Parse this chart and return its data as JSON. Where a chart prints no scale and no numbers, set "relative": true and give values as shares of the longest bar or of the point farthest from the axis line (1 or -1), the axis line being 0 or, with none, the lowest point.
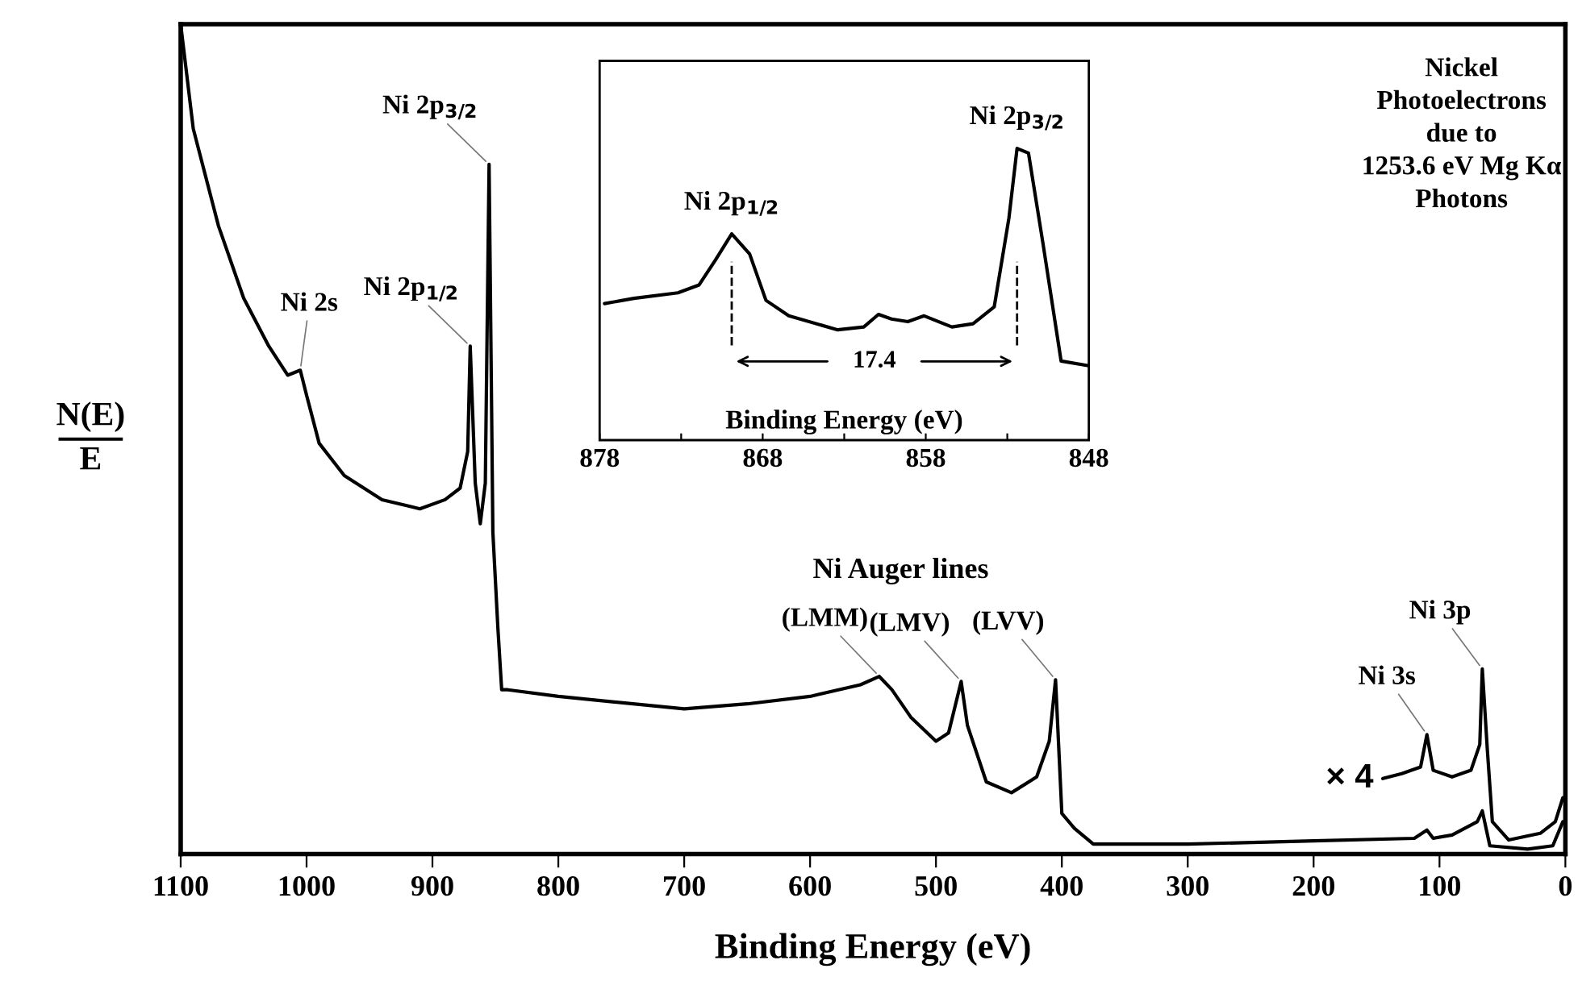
{
  "chart_data": [
    {
      "type": "line",
      "xlabel": "Binding Energy (eV)",
      "ylabel": "N(E)\nE",
      "relative": true,
      "tick_labels": "x",
      "xlim": [
        1100,
        0
      ],
      "xticks": [
        1100,
        1000,
        900,
        800,
        700,
        600,
        500,
        400,
        300,
        200,
        100,
        0
      ],
      "series": [
        {
          "color": "#000000",
          "x": [
            1100,
            1090,
            1070,
            1050,
            1030,
            1015,
            1005,
            1000,
            990,
            970,
            940,
            910,
            890,
            878,
            872,
            870,
            866,
            862,
            858,
            855,
            852,
            848,
            845,
            840,
            800,
            700,
            650,
            600,
            560,
            545,
            535,
            520,
            500,
            490,
            480,
            475,
            460,
            440,
            420,
            410,
            405,
            400,
            390,
            375,
            300,
            200,
            120,
            110,
            105,
            90,
            70,
            66,
            60,
            30,
            10,
            2
          ],
          "values": [
            1.0,
            0.874,
            0.757,
            0.67,
            0.612,
            0.577,
            0.583,
            0.553,
            0.495,
            0.456,
            0.427,
            0.416,
            0.427,
            0.441,
            0.485,
            0.612,
            0.447,
            0.398,
            0.447,
            0.831,
            0.388,
            0.272,
            0.198,
            0.198,
            0.19,
            0.175,
            0.181,
            0.19,
            0.204,
            0.214,
            0.198,
            0.165,
            0.136,
            0.146,
            0.208,
            0.155,
            0.087,
            0.074,
            0.093,
            0.136,
            0.21,
            0.049,
            0.031,
            0.012,
            0.012,
            0.016,
            0.019,
            0.029,
            0.019,
            0.023,
            0.039,
            0.052,
            0.01,
            0.006,
            0.01,
            0.039
          ]
        },
        {
          "name": "× 4",
          "color": "#000000",
          "x": [
            145,
            130,
            115,
            110,
            105,
            90,
            75,
            68,
            66,
            62,
            58,
            45,
            20,
            8,
            2
          ],
          "values": [
            0.091,
            0.097,
            0.105,
            0.144,
            0.101,
            0.093,
            0.101,
            0.132,
            0.223,
            0.126,
            0.039,
            0.017,
            0.025,
            0.039,
            0.068
          ]
        }
      ],
      "annotations": [
        {
          "text": "Ni 2s",
          "x": 1005,
          "y": 0.583
        },
        {
          "text": "Ni 2p$_{1/2}$",
          "x": 870,
          "y": 0.612
        },
        {
          "text": "Ni 2p$_{3/2}$",
          "x": 855,
          "y": 0.831
        },
        {
          "text": "(LMM)",
          "x": 545,
          "y": 0.214
        },
        {
          "text": "(LMV)",
          "x": 480,
          "y": 0.208
        },
        {
          "text": "(LVV)",
          "x": 405,
          "y": 0.21
        },
        {
          "text": "Ni 3s",
          "x": 110,
          "y": 0.144
        },
        {
          "text": "Ni 3p",
          "x": 66,
          "y": 0.223
        },
        "Ni Auger lines",
        "Nickel\nPhotoelectrons\ndue to\n1253.6 eV Mg Kα\nPhotons"
      ]
    },
    {
      "type": "line",
      "xlabel": "Binding Energy (eV)",
      "relative": true,
      "tick_labels": "x",
      "xlim": [
        878,
        848
      ],
      "xticks": [
        878,
        {
          "value": 873,
          "label": null
        },
        868,
        {
          "value": 863,
          "label": null
        },
        858,
        {
          "value": 853,
          "label": null
        },
        848
      ],
      "series": [
        {
          "color": "#000000",
          "x": [
            877.7,
            875.9,
            873.2,
            871.9,
            870.9,
            869.9,
            868.8,
            867.8,
            866.4,
            863.4,
            861.8,
            860.9,
            860.1,
            859.1,
            858.1,
            856.4,
            855.1,
            853.8,
            852.9,
            852.4,
            851.7,
            850.8,
            849.7,
            848
          ],
          "values": [
            0.468,
            0.486,
            0.505,
            0.532,
            0.617,
            0.707,
            0.638,
            0.479,
            0.426,
            0.378,
            0.388,
            0.431,
            0.415,
            0.406,
            0.426,
            0.388,
            0.399,
            0.457,
            0.761,
            1.0,
            0.984,
            0.67,
            0.271,
            0.255
          ]
        }
      ],
      "ref_lines": [
        {
          "axis": "x",
          "value": 869.9,
          "line_style": "dashed"
        },
        {
          "axis": "x",
          "value": 852.4,
          "line_style": "dashed"
        }
      ],
      "annotations": [
        {
          "text": "Ni 2p$_{1/2}$",
          "x": 869.9,
          "y": 0.707
        },
        {
          "text": "Ni 2p$_{3/2}$",
          "x": 852.4,
          "y": 1.0
        },
        "17.4"
      ]
    }
  ]
}
